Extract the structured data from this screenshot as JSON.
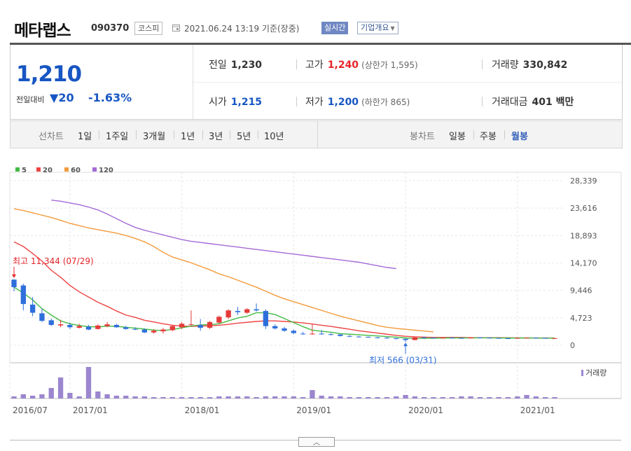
{
  "header": {
    "name": "메타랩스",
    "code": "090370",
    "market": "코스피",
    "timestamp": "2021.06.24 13:19 기준(장중)",
    "realtime": "실시간",
    "company_menu": "기업개요"
  },
  "quote": {
    "price": "1,210",
    "change_label": "전일대비",
    "change_amount": "20",
    "change_pct": "-1.63%",
    "prev_close_label": "전일",
    "prev_close": "1,230",
    "high_label": "고가",
    "high": "1,240",
    "upper_limit": "(상한가 1,595)",
    "volume_label": "거래량",
    "volume": "330,842",
    "open_label": "시가",
    "open": "1,215",
    "low_label": "저가",
    "low": "1,200",
    "lower_limit": "(하한가 865)",
    "trade_value_label": "거래대금",
    "trade_value": "401 백만"
  },
  "toolbar": {
    "line_chart_label": "선차트",
    "line_periods": [
      "1일",
      "1주일",
      "3개월",
      "1년",
      "3년",
      "5년",
      "10년"
    ],
    "candle_chart_label": "봉차트",
    "candle_periods": [
      "일봉",
      "주봉",
      "월봉"
    ],
    "active_candle_period": "월봉"
  },
  "chart_data": {
    "type": "candlestick",
    "legend": [
      "5",
      "20",
      "60",
      "120"
    ],
    "legend_colors": [
      "#44bb44",
      "#ee4444",
      "#f29a3a",
      "#a46ad6"
    ],
    "up_color": "#e53a3a",
    "down_color": "#2f6fdc",
    "y_ticks": [
      "28,339",
      "23,616",
      "18,893",
      "14,170",
      "9,446",
      "4,723",
      "0"
    ],
    "ylim": [
      0,
      28339
    ],
    "x_ticks": [
      "2016/07",
      "2017/01",
      "2018/01",
      "2019/01",
      "2020/01",
      "2021/01"
    ],
    "x_tick_index": [
      0,
      6,
      18,
      30,
      42,
      54
    ],
    "volume_label": "거래량",
    "high_annotation": "최고 11,344 (07/29)",
    "low_annotation": "최저 566 (03/31)",
    "candles": [
      [
        11300,
        11344,
        9300,
        10000
      ],
      [
        10300,
        10600,
        6000,
        7100
      ],
      [
        7000,
        8300,
        5000,
        5600
      ],
      [
        5500,
        6300,
        4000,
        4200
      ],
      [
        4300,
        4600,
        3300,
        3500
      ],
      [
        3400,
        4400,
        3100,
        3600
      ],
      [
        3500,
        3900,
        2800,
        3100
      ],
      [
        3000,
        3700,
        2900,
        3300
      ],
      [
        3200,
        3500,
        2600,
        2700
      ],
      [
        2800,
        3600,
        2700,
        3400
      ],
      [
        3300,
        4000,
        3100,
        3600
      ],
      [
        3500,
        3700,
        3000,
        3100
      ],
      [
        3100,
        3300,
        2700,
        2800
      ],
      [
        2800,
        3100,
        2600,
        2700
      ],
      [
        2700,
        2900,
        2100,
        2200
      ],
      [
        2200,
        2800,
        2000,
        2500
      ],
      [
        2400,
        3000,
        2000,
        2700
      ],
      [
        2600,
        3500,
        2400,
        3300
      ],
      [
        3100,
        4000,
        2800,
        3700
      ],
      [
        3500,
        6000,
        3300,
        3600
      ],
      [
        3500,
        4500,
        2500,
        3000
      ],
      [
        3000,
        4200,
        2800,
        4000
      ],
      [
        3900,
        5100,
        3700,
        4900
      ],
      [
        4800,
        6200,
        4500,
        6000
      ],
      [
        5900,
        6600,
        5200,
        5700
      ],
      [
        5600,
        6400,
        5400,
        6200
      ],
      [
        6200,
        7200,
        5800,
        6000
      ],
      [
        5900,
        6200,
        2800,
        3300
      ],
      [
        3300,
        3600,
        2700,
        2900
      ],
      [
        2900,
        3200,
        2300,
        2500
      ],
      [
        2500,
        2700,
        1900,
        2100
      ],
      [
        2000,
        2300,
        1800,
        1900
      ],
      [
        1900,
        3600,
        1800,
        2000
      ],
      [
        2000,
        2600,
        1800,
        1900
      ],
      [
        1900,
        2100,
        1700,
        1850
      ],
      [
        1850,
        1950,
        1500,
        1600
      ],
      [
        1600,
        1750,
        1400,
        1500
      ],
      [
        1500,
        1600,
        1350,
        1450
      ],
      [
        1450,
        1500,
        1300,
        1350
      ],
      [
        1350,
        1450,
        1200,
        1300
      ],
      [
        1300,
        1400,
        1150,
        1200
      ],
      [
        1200,
        1250,
        1000,
        1100
      ],
      [
        1100,
        1150,
        566,
        900
      ],
      [
        900,
        1400,
        850,
        1350
      ],
      [
        1350,
        1500,
        1200,
        1300
      ],
      [
        1300,
        1350,
        1150,
        1250
      ],
      [
        1250,
        1350,
        1150,
        1300
      ],
      [
        1300,
        1350,
        1200,
        1250
      ],
      [
        1250,
        1300,
        1150,
        1200
      ],
      [
        1200,
        1400,
        1150,
        1350
      ],
      [
        1350,
        1400,
        1250,
        1300
      ],
      [
        1300,
        1350,
        1200,
        1250
      ],
      [
        1250,
        1300,
        1150,
        1200
      ],
      [
        1200,
        1250,
        1100,
        1150
      ],
      [
        1150,
        1300,
        1100,
        1250
      ],
      [
        1250,
        1350,
        1200,
        1300
      ],
      [
        1300,
        1350,
        1200,
        1250
      ],
      [
        1250,
        1300,
        1150,
        1200
      ],
      [
        1200,
        1280,
        1150,
        1210
      ]
    ],
    "volume": [
      3,
      6,
      4,
      6,
      15,
      30,
      8,
      3,
      45,
      10,
      6,
      4,
      4,
      3,
      3,
      2,
      2,
      2,
      2,
      2,
      2,
      2,
      3,
      3,
      3,
      3,
      2,
      3,
      3,
      3,
      3,
      2,
      12,
      4,
      3,
      3,
      2,
      2,
      2,
      2,
      2,
      3,
      5,
      3,
      2,
      2,
      2,
      2,
      3,
      3,
      2,
      2,
      2,
      2,
      3,
      5,
      3,
      2,
      2
    ],
    "ma5": [
      10000,
      9000,
      7800,
      6300,
      5200,
      4200,
      3700,
      3400,
      3200,
      3150,
      3300,
      3250,
      3100,
      2950,
      2800,
      2600,
      2550,
      2700,
      3000,
      3300,
      3500,
      3550,
      3700,
      4200,
      4700,
      5000,
      5600,
      5600,
      5300,
      4600,
      3900,
      3200,
      2600,
      2400,
      2250,
      2000,
      1900,
      1800,
      1700,
      1600,
      1500,
      1400,
      1250,
      1180,
      1200,
      1220,
      1250,
      1260,
      1260,
      1260,
      1270,
      1270,
      1260,
      1250,
      1240,
      1250,
      1240,
      1230,
      1230
    ],
    "ma20": [
      17800,
      17000,
      15800,
      14500,
      12900,
      11700,
      10300,
      9200,
      8300,
      7400,
      6700,
      5900,
      5200,
      4800,
      4300,
      4000,
      3700,
      3450,
      3300,
      3250,
      3300,
      3350,
      3450,
      3600,
      3800,
      3950,
      4100,
      4200,
      4200,
      4100,
      4000,
      3850,
      3650,
      3450,
      3250,
      3000,
      2750,
      2500,
      2300,
      2100,
      1900,
      1700,
      1550,
      1450,
      1400,
      1350,
      1350,
      1350,
      1350,
      1300,
      1300,
      1300,
      1300,
      1280,
      1270,
      1260,
      1260,
      1250,
      1240
    ],
    "ma60": [
      23500,
      23200,
      22800,
      22400,
      22000,
      21500,
      21000,
      20600,
      20200,
      19900,
      19600,
      19300,
      18900,
      18400,
      17800,
      17000,
      16000,
      15200,
      14700,
      14200,
      13600,
      13000,
      12300,
      11800,
      11200,
      10600,
      10000,
      9300,
      8600,
      8000,
      7500,
      7000,
      6500,
      6000,
      5500,
      5000,
      4600,
      4200,
      3800,
      3400,
      3100,
      2900,
      2750,
      2600,
      2450,
      2300
    ],
    "ma60_start": 0,
    "ma120": [
      25000,
      24800,
      24500,
      24200,
      23800,
      23300,
      22600,
      21800,
      21000,
      20300,
      19800,
      19400,
      19000,
      18600,
      18200,
      17900,
      17700,
      17500,
      17300,
      17100,
      16900,
      16700,
      16500,
      16300,
      16100,
      15900,
      15700,
      15500,
      15300,
      15100,
      14900,
      14700,
      14500,
      14300,
      14000,
      13700,
      13400,
      13200
    ],
    "ma120_start": 4
  }
}
